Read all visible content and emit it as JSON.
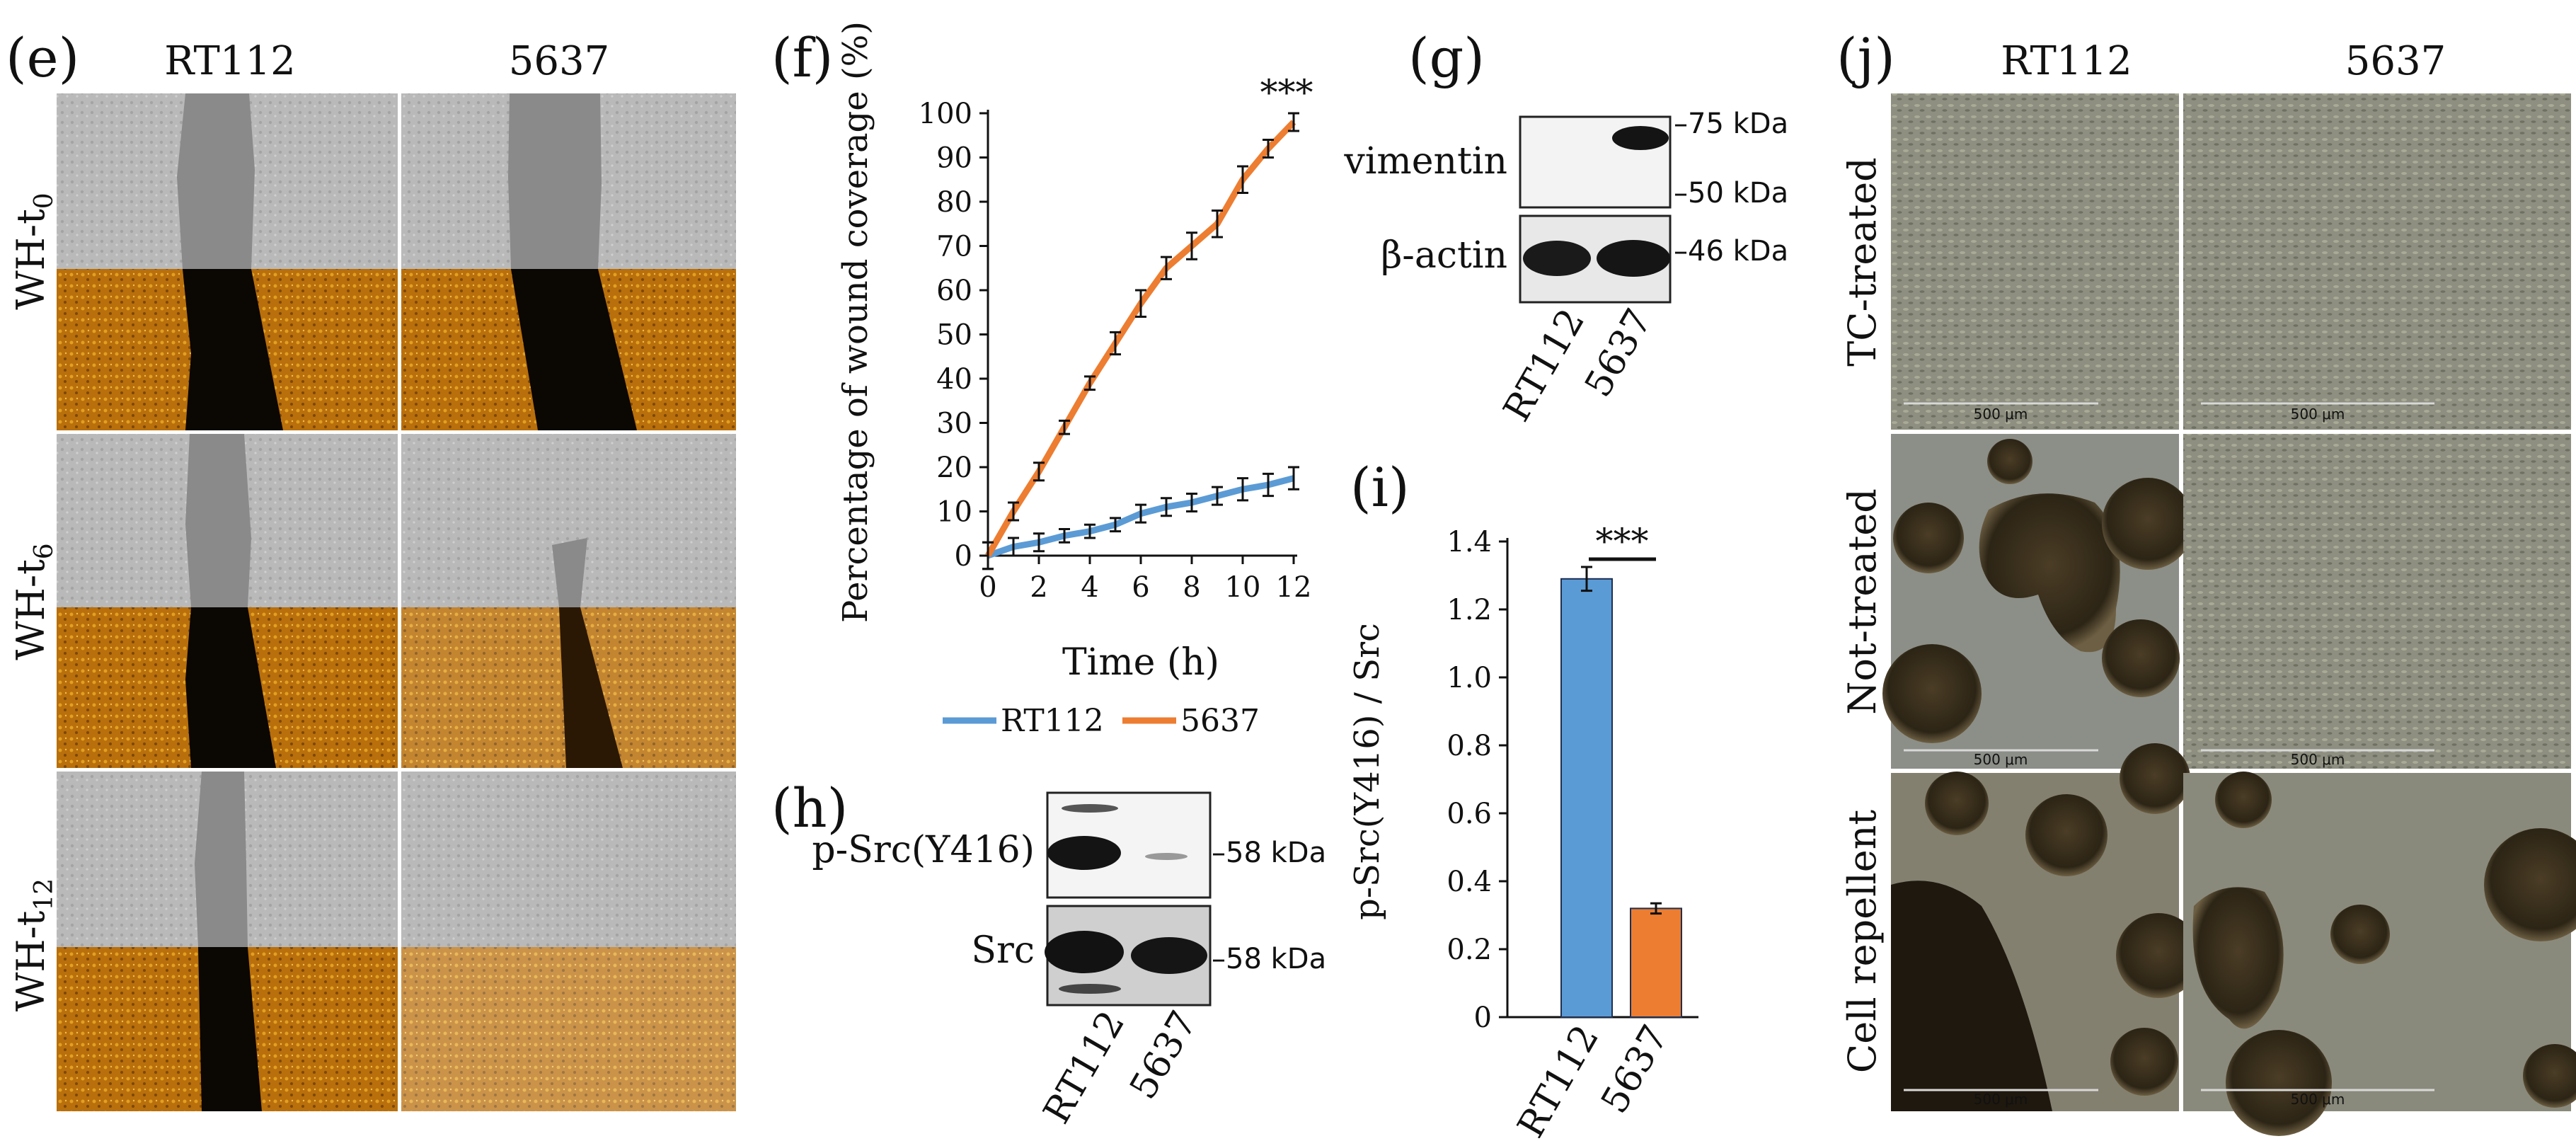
{
  "panel_e": {
    "label": "(e)",
    "columns": [
      "RT112",
      "5637"
    ],
    "rows": [
      {
        "name": "WH-t",
        "sub": "0"
      },
      {
        "name": "WH-t",
        "sub": "6"
      },
      {
        "name": "WH-t",
        "sub": "12"
      }
    ]
  },
  "panel_g": {
    "label": "(g)",
    "bands": [
      "vimentin",
      "β-actin"
    ],
    "markers": [
      "–75 kDa",
      "–50 kDa",
      "–46 kDa"
    ],
    "lanes": [
      "RT112",
      "5637"
    ]
  },
  "panel_h": {
    "label": "(h)",
    "bands": [
      "p-Src(Y416)",
      "Src"
    ],
    "markers": [
      "–58 kDa",
      "–58 kDa"
    ],
    "lanes": [
      "RT112",
      "5637"
    ]
  },
  "panel_j": {
    "label": "(j)",
    "columns": [
      "RT112",
      "5637"
    ],
    "rows": [
      "TC-treated",
      "Not-treated",
      "Cell repellent"
    ],
    "scale_bar": "500 μm"
  },
  "chart_data": [
    {
      "panel": "(f)",
      "type": "line",
      "title": "",
      "xlabel": "Time (h)",
      "ylabel": "Percentage of wound coverage (%)",
      "x": [
        0,
        1,
        2,
        3,
        4,
        5,
        6,
        7,
        8,
        9,
        10,
        11,
        12
      ],
      "xticks": [
        "0",
        "2",
        "4",
        "6",
        "8",
        "10",
        "12"
      ],
      "yticks": [
        "0",
        "10",
        "20",
        "30",
        "40",
        "50",
        "60",
        "70",
        "80",
        "90",
        "100"
      ],
      "xlim": [
        0,
        12
      ],
      "ylim": [
        0,
        100
      ],
      "series": [
        {
          "name": "RT112",
          "color": "#5b9bd5",
          "values": [
            0,
            2,
            3,
            4.5,
            5.5,
            7,
            9.5,
            11,
            12,
            13.5,
            15,
            16,
            17.5
          ],
          "errors": [
            3,
            2,
            2,
            1.5,
            1.5,
            1.5,
            2,
            2,
            2,
            2,
            2.5,
            2.5,
            2.5
          ]
        },
        {
          "name": "5637",
          "color": "#ed7d31",
          "values": [
            0,
            10,
            19,
            29,
            39,
            48,
            57,
            65,
            70,
            75,
            85,
            92,
            98
          ],
          "errors": [
            3,
            2,
            2,
            1.5,
            1.5,
            2.5,
            3,
            2.5,
            3,
            3,
            3,
            2,
            2
          ]
        }
      ],
      "annotations": [
        "***"
      ],
      "legend": "bottom"
    },
    {
      "panel": "(i)",
      "type": "bar",
      "title": "",
      "xlabel": "",
      "ylabel": "p-Src(Y416) / Src",
      "categories": [
        "RT112",
        "5637"
      ],
      "values": [
        1.29,
        0.32
      ],
      "errors": [
        0.035,
        0.015
      ],
      "colors": [
        "#5b9bd5",
        "#ed7d31"
      ],
      "yticks": [
        "0",
        "0.2",
        "0.4",
        "0.6",
        "0.8",
        "1.0",
        "1.2",
        "1.4"
      ],
      "ylim": [
        0,
        1.4
      ],
      "annotations": [
        "***"
      ]
    }
  ]
}
